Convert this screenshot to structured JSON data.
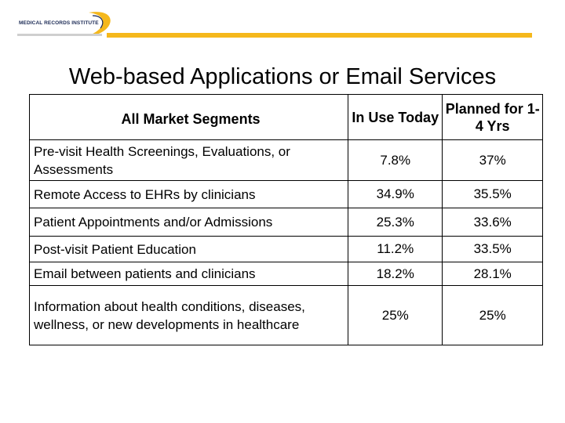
{
  "logo": {
    "text": "MEDICAL RECORDS INSTITUTE",
    "accent_color": "#f5b81c",
    "text_color": "#1b2a55"
  },
  "title": "Web-based Applications or Email Services",
  "table": {
    "headers": {
      "segment": "All Market Segments",
      "in_use": "In Use Today",
      "planned": "Planned for 1-4 Yrs"
    },
    "rows": [
      {
        "segment": "Pre-visit Health Screenings, Evaluations, or Assessments",
        "in_use": "7.8%",
        "planned": "37%"
      },
      {
        "segment": "Remote Access to EHRs by clinicians",
        "in_use": "34.9%",
        "planned": "35.5%"
      },
      {
        "segment": "Patient Appointments and/or Admissions",
        "in_use": "25.3%",
        "planned": "33.6%"
      },
      {
        "segment": "Post-visit Patient Education",
        "in_use": "11.2%",
        "planned": "33.5%"
      },
      {
        "segment": "Email between patients and clinicians",
        "in_use": "18.2%",
        "planned": "28.1%"
      },
      {
        "segment": "Information about health conditions, diseases, wellness, or new developments in healthcare",
        "in_use": "25%",
        "planned": "25%"
      }
    ]
  }
}
